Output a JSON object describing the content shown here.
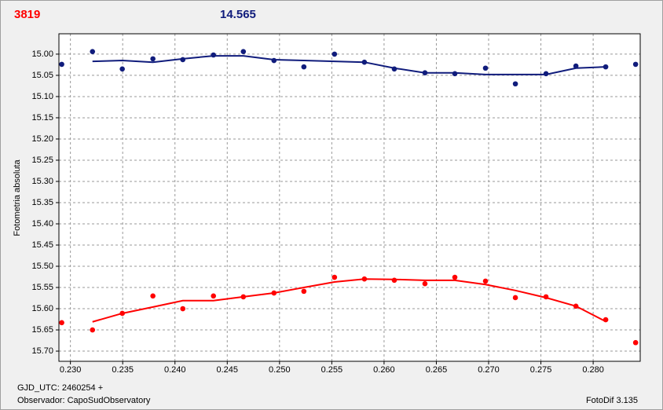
{
  "chart_data": {
    "type": "scatter",
    "title": "3819",
    "title_color": "#ff0000",
    "subtitle": "14.565",
    "subtitle_color": "#101c7c",
    "y_label": "Fotometria absoluta",
    "x_label": "GJD_UTC: 2460254 +",
    "observer": "Observador: CapoSudObservatory",
    "software": "FotoDif 3.135",
    "grid": true,
    "y_inverted": true,
    "xlim": [
      0.2289,
      0.2845
    ],
    "ylim": [
      14.952,
      15.724
    ],
    "xticks": [
      {
        "value": 0.23,
        "label": "0.230"
      },
      {
        "value": 0.235,
        "label": "0.235"
      },
      {
        "value": 0.24,
        "label": "0.240"
      },
      {
        "value": 0.245,
        "label": "0.245"
      },
      {
        "value": 0.25,
        "label": "0.250"
      },
      {
        "value": 0.255,
        "label": "0.255"
      },
      {
        "value": 0.26,
        "label": "0.260"
      },
      {
        "value": 0.265,
        "label": "0.265"
      },
      {
        "value": 0.27,
        "label": "0.270"
      },
      {
        "value": 0.275,
        "label": "0.275"
      },
      {
        "value": 0.28,
        "label": "0.280"
      }
    ],
    "yticks": [
      {
        "value": 15.0,
        "label": "15.00"
      },
      {
        "value": 15.05,
        "label": "15.05"
      },
      {
        "value": 15.1,
        "label": "15.10"
      },
      {
        "value": 15.15,
        "label": "15.15"
      },
      {
        "value": 15.2,
        "label": "15.20"
      },
      {
        "value": 15.25,
        "label": "15.25"
      },
      {
        "value": 15.3,
        "label": "15.30"
      },
      {
        "value": 15.35,
        "label": "15.35"
      },
      {
        "value": 15.4,
        "label": "15.40"
      },
      {
        "value": 15.45,
        "label": "15.45"
      },
      {
        "value": 15.5,
        "label": "15.50"
      },
      {
        "value": 15.55,
        "label": "15.55"
      },
      {
        "value": 15.6,
        "label": "15.60"
      },
      {
        "value": 15.65,
        "label": "15.65"
      },
      {
        "value": 15.7,
        "label": "15.70"
      }
    ],
    "x": [
      0.22917,
      0.23211,
      0.23496,
      0.23789,
      0.24075,
      0.24368,
      0.24654,
      0.24947,
      0.25233,
      0.25526,
      0.25812,
      0.26098,
      0.26391,
      0.26677,
      0.2697,
      0.27256,
      0.27549,
      0.27835,
      0.2812,
      0.28406
    ],
    "series": [
      {
        "color": "#101c7c",
        "style": "markers",
        "values": [
          15.024,
          14.994,
          15.035,
          15.011,
          15.013,
          15.002,
          14.994,
          15.015,
          15.03,
          15.0,
          15.019,
          15.035,
          15.044,
          15.046,
          15.033,
          15.07,
          15.046,
          15.028,
          15.03,
          15.024
        ]
      },
      {
        "color": "#101c7c",
        "style": "line",
        "values": [
          null,
          15.017,
          15.015,
          15.019,
          15.011,
          15.004,
          15.004,
          15.013,
          15.015,
          15.017,
          15.019,
          15.033,
          15.044,
          15.044,
          15.048,
          15.048,
          15.048,
          15.033,
          15.03,
          null
        ]
      },
      {
        "color": "#ff0000",
        "style": "markers",
        "values": [
          15.633,
          15.65,
          15.611,
          15.57,
          15.6,
          15.57,
          15.572,
          15.563,
          15.559,
          15.526,
          15.53,
          15.533,
          15.541,
          15.526,
          15.535,
          15.574,
          15.572,
          15.594,
          15.626,
          15.68
        ]
      },
      {
        "color": "#ff0000",
        "style": "line",
        "values": [
          null,
          15.631,
          15.611,
          15.596,
          15.581,
          15.581,
          15.572,
          15.563,
          15.55,
          15.537,
          15.53,
          15.531,
          15.533,
          15.533,
          15.543,
          15.557,
          15.574,
          15.594,
          15.63,
          null
        ]
      }
    ]
  }
}
